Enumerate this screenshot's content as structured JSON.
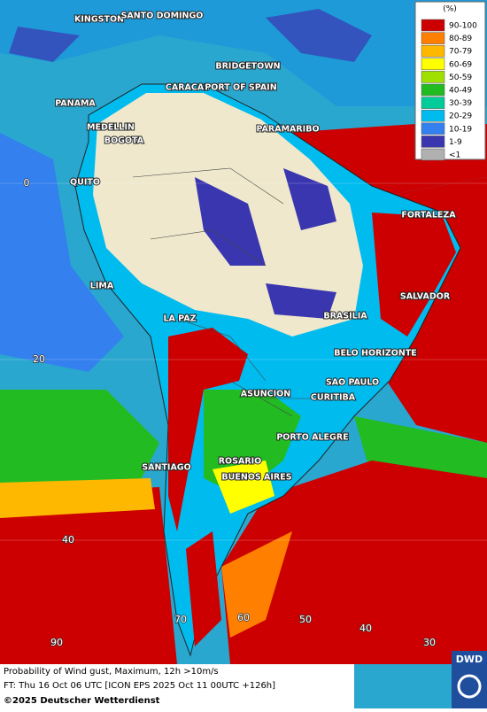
{
  "legend": {
    "title": "(%)",
    "items": [
      {
        "label": "90-100",
        "color": "#cc0000"
      },
      {
        "label": "80-89",
        "color": "#ff7f00"
      },
      {
        "label": "70-79",
        "color": "#ffb800"
      },
      {
        "label": "60-69",
        "color": "#ffff00"
      },
      {
        "label": "50-59",
        "color": "#a0e000"
      },
      {
        "label": "40-49",
        "color": "#22bb22"
      },
      {
        "label": "30-39",
        "color": "#00cc99"
      },
      {
        "label": "20-29",
        "color": "#00bbee"
      },
      {
        "label": "10-19",
        "color": "#3380ee"
      },
      {
        "label": "1-9",
        "color": "#3a36b0"
      },
      {
        "label": "<1",
        "color": "#b0b0b0"
      }
    ]
  },
  "map": {
    "cities": [
      "KINGSTON",
      "SANTO DOMINGO",
      "BRIDGETOWN",
      "CARACAS",
      "PORT OF SPAIN",
      "PANAMA",
      "MEDELLIN",
      "BOGOTA",
      "PARAMARIBO",
      "QUITO",
      "FORTALEZA",
      "LIMA",
      "SALVADOR",
      "LA PAZ",
      "BRASILIA",
      "BELO HORIZONTE",
      "SAO PAULO",
      "ASUNCION",
      "CURITIBA",
      "PORTO ALEGRE",
      "ROSARIO",
      "SANTIAGO",
      "BUENOS AIRES"
    ],
    "latitude_labels": [
      "0",
      "20",
      "40"
    ],
    "longitude_labels": [
      "90",
      "70",
      "60",
      "50",
      "40",
      "30"
    ]
  },
  "footer": {
    "title": "Probability of Wind gust, Maximum, 12h >10m/s",
    "forecast": "FT: Thu 16 Oct 06 UTC [ICON EPS 2025 Oct 11 00UTC +126h]",
    "copyright": "©2025 Deutscher Wetterdienst"
  },
  "logo": "DWD"
}
